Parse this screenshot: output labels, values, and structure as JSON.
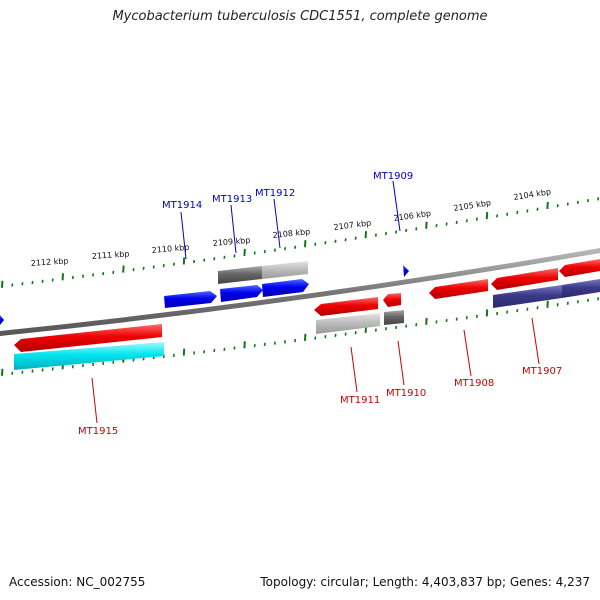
{
  "title": "Mycobacterium tuberculosis CDC1551, complete genome",
  "accession": "Accession: NC_002755",
  "stats": "Topology: circular; Length: 4,403,837 bp; Genes: 4,237",
  "scale_labels": [
    "2112 kbp",
    "2111 kbp",
    "2110 kbp",
    "2109 kbp",
    "2108 kbp",
    "2107 kbp",
    "2106 kbp",
    "2105 kbp",
    "2104 kbp"
  ],
  "genes_forward": [
    {
      "label": "MT1914",
      "color": "#0000cc"
    },
    {
      "label": "MT1913",
      "color": "#0000cc"
    },
    {
      "label": "MT1912",
      "color": "#0000cc"
    },
    {
      "label": "MT1909",
      "color": "#0000cc"
    }
  ],
  "genes_reverse": [
    {
      "label": "MT1915",
      "color": "#cc0000"
    },
    {
      "label": "MT1911",
      "color": "#cc0000"
    },
    {
      "label": "MT1910",
      "color": "#cc0000"
    },
    {
      "label": "MT1908",
      "color": "#cc0000"
    },
    {
      "label": "MT1907",
      "color": "#cc0000"
    }
  ],
  "colors": {
    "forward_cds": "#0000ee",
    "reverse_cds": "#ee0000",
    "backbone": "#777777",
    "ticks": "#117711",
    "cyan_feature": "#00e5ee",
    "purple_feature": "#3a3a8a",
    "gray_feature": "#999999"
  }
}
